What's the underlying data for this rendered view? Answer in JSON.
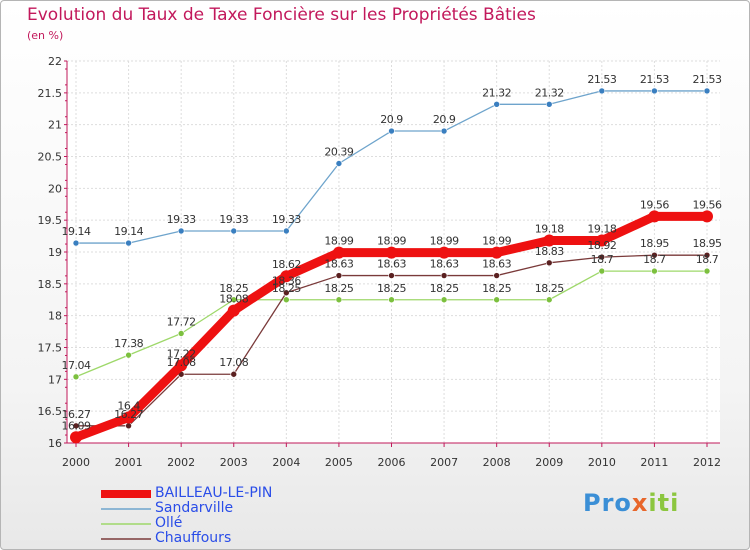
{
  "title": "Evolution du Taux de Taxe Foncière sur les Propriétés Bâties",
  "unit_label": "(en %)",
  "brand": {
    "logo_parts": [
      {
        "text": "Pro",
        "color": "#3b8fd6"
      },
      {
        "text": "x",
        "color": "#e8662a"
      },
      {
        "text": "iti",
        "color": "#8cc63f"
      }
    ]
  },
  "chart_data": {
    "type": "line",
    "title": "Evolution du Taux de Taxe Foncière sur les Propriétés Bâties",
    "ylabel": "(en %)",
    "xlabel": "",
    "ylim": [
      16,
      22
    ],
    "yticks": [
      "16",
      "16.5",
      "17",
      "17.5",
      "18",
      "18.5",
      "19",
      "19.5",
      "20",
      "20.5",
      "21",
      "21.5",
      "22"
    ],
    "categories": [
      "2000",
      "2001",
      "2002",
      "2003",
      "2004",
      "2005",
      "2006",
      "2007",
      "2008",
      "2009",
      "2010",
      "2011",
      "2012"
    ],
    "grid": true,
    "legend_position": "bottom-left",
    "series": [
      {
        "name": "Sandarville",
        "color": "#6ea4cc",
        "marker": "#3a7fc0",
        "values": [
          19.14,
          19.14,
          19.33,
          19.33,
          19.33,
          20.39,
          20.9,
          20.9,
          21.32,
          21.32,
          21.53,
          21.53,
          21.53
        ],
        "labels": [
          "19.14",
          "19.14",
          "19.33",
          "19.33",
          "19.33",
          "20.39",
          "20.9",
          "20.9",
          "21.32",
          "21.32",
          "21.53",
          "21.53",
          "21.53"
        ]
      },
      {
        "name": "Ollé",
        "color": "#9ed86a",
        "marker": "#7cc03e",
        "values": [
          17.04,
          17.38,
          17.72,
          18.25,
          18.25,
          18.25,
          18.25,
          18.25,
          18.25,
          18.25,
          18.7,
          18.7,
          18.7
        ],
        "labels": [
          "17.04",
          "17.38",
          "17.72",
          "18.25",
          "18.25",
          "18.25",
          "18.25",
          "18.25",
          "18.25",
          "18.25",
          "18.7",
          "18.7",
          "18.7"
        ]
      },
      {
        "name": "Chauffours",
        "color": "#7a3a3a",
        "marker": "#5a2020",
        "values": [
          16.27,
          16.27,
          17.08,
          17.08,
          18.36,
          18.63,
          18.63,
          18.63,
          18.63,
          18.83,
          18.92,
          18.95,
          18.95
        ],
        "labels": [
          "16.27",
          "16.27",
          "17.08",
          "17.08",
          "18.36",
          "18.63",
          "18.63",
          "18.63",
          "18.63",
          "18.83",
          "18.92",
          "18.95",
          "18.95"
        ]
      },
      {
        "name": "BAILLEAU-LE-PIN",
        "color": "#ee1111",
        "marker": "#ee1111",
        "values": [
          16.09,
          16.4,
          17.22,
          18.08,
          18.62,
          18.99,
          18.99,
          18.99,
          18.99,
          19.18,
          19.18,
          19.56,
          19.56
        ],
        "labels": [
          "16.09",
          "16.4",
          "17.22",
          "18.08",
          "18.62",
          "18.99",
          "18.99",
          "18.99",
          "18.99",
          "19.18",
          "19.18",
          "19.56",
          "19.56"
        ]
      }
    ],
    "legend": [
      "BAILLEAU-LE-PIN",
      "Sandarville",
      "Ollé",
      "Chauffours"
    ]
  }
}
